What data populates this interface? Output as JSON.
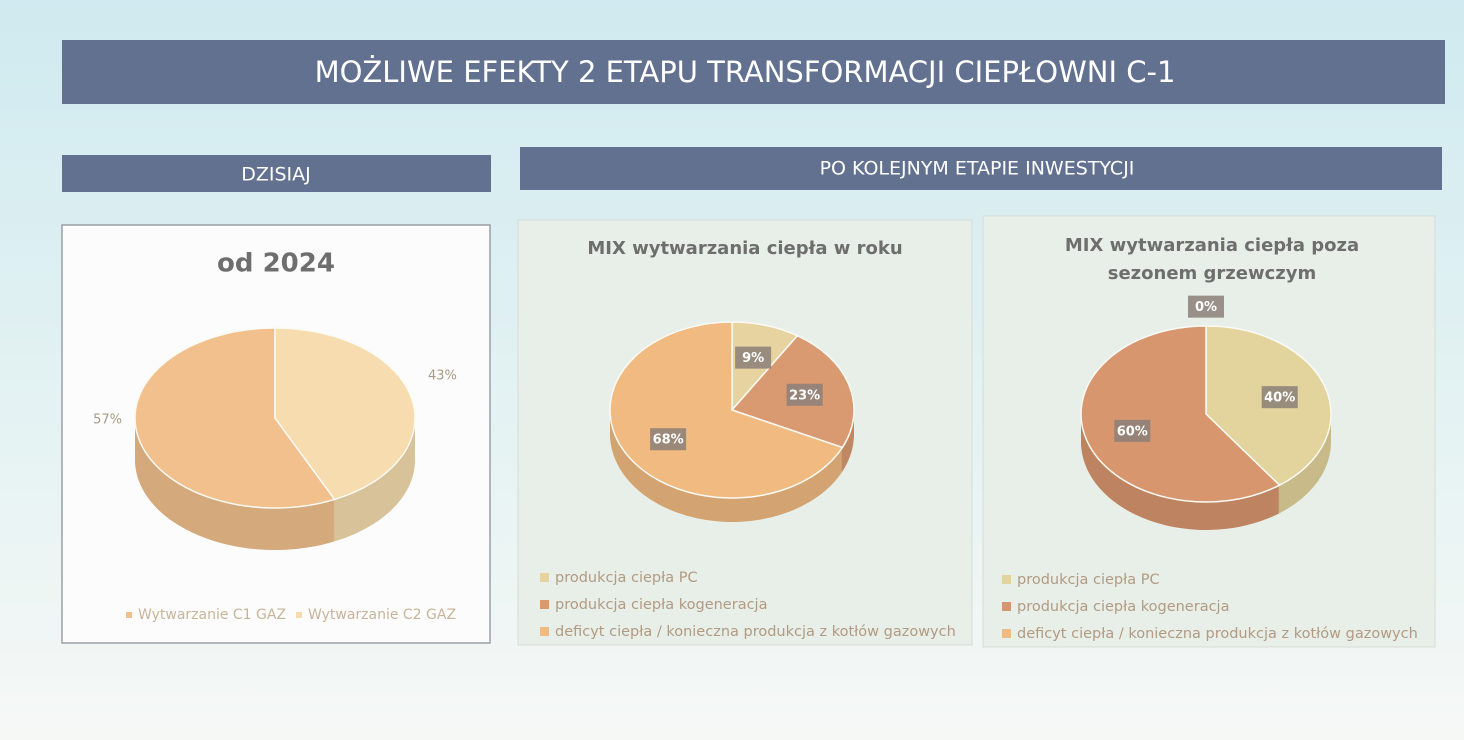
{
  "header": {
    "title": "MOŻLIWE EFEKTY 2 ETAPU TRANSFORMACJI CIEPŁOWNI C-1"
  },
  "sections": [
    "DZISIAJ",
    "PO KOLEJNYM ETAPIE INWESTYCJI"
  ],
  "chart_data": [
    {
      "type": "pie",
      "title": "od 2024",
      "categories": [
        "Wytwarzanie C1 GAZ",
        "Wytwarzanie C2 GAZ"
      ],
      "values": [
        57,
        43
      ],
      "value_labels": [
        "57%",
        "43%"
      ],
      "colors": [
        "#f1c08d",
        "#f6dcae"
      ],
      "direction": "counterclockwise",
      "label_position": "outside",
      "legend": "bottom"
    },
    {
      "type": "pie",
      "title": "MIX wytwarzania ciepła w roku",
      "categories": [
        "produkcja ciepła PC",
        "produkcja ciepła kogeneracja",
        "deficyt ciepła / konieczna produkcja z kotłów gazowych"
      ],
      "values": [
        9,
        23,
        68
      ],
      "value_labels": [
        "9%",
        "23%",
        "68%"
      ],
      "colors": [
        "#e6d3a0",
        "#d99a72",
        "#f0ba80"
      ],
      "direction": "clockwise",
      "label_position": "inside",
      "legend": "bottom"
    },
    {
      "type": "pie",
      "title": "MIX wytwarzania ciepła poza sezonem grzewczym",
      "categories": [
        "produkcja ciepła PC",
        "produkcja ciepła kogeneracja",
        "deficyt ciepła / konieczna produkcja z kotłów gazowych"
      ],
      "values": [
        40,
        60,
        0
      ],
      "value_labels": [
        "40%",
        "60%",
        "0%"
      ],
      "colors": [
        "#e3d39c",
        "#d8966e",
        "#f0ba80"
      ],
      "direction": "clockwise",
      "label_position": "inside",
      "legend": "bottom"
    }
  ]
}
